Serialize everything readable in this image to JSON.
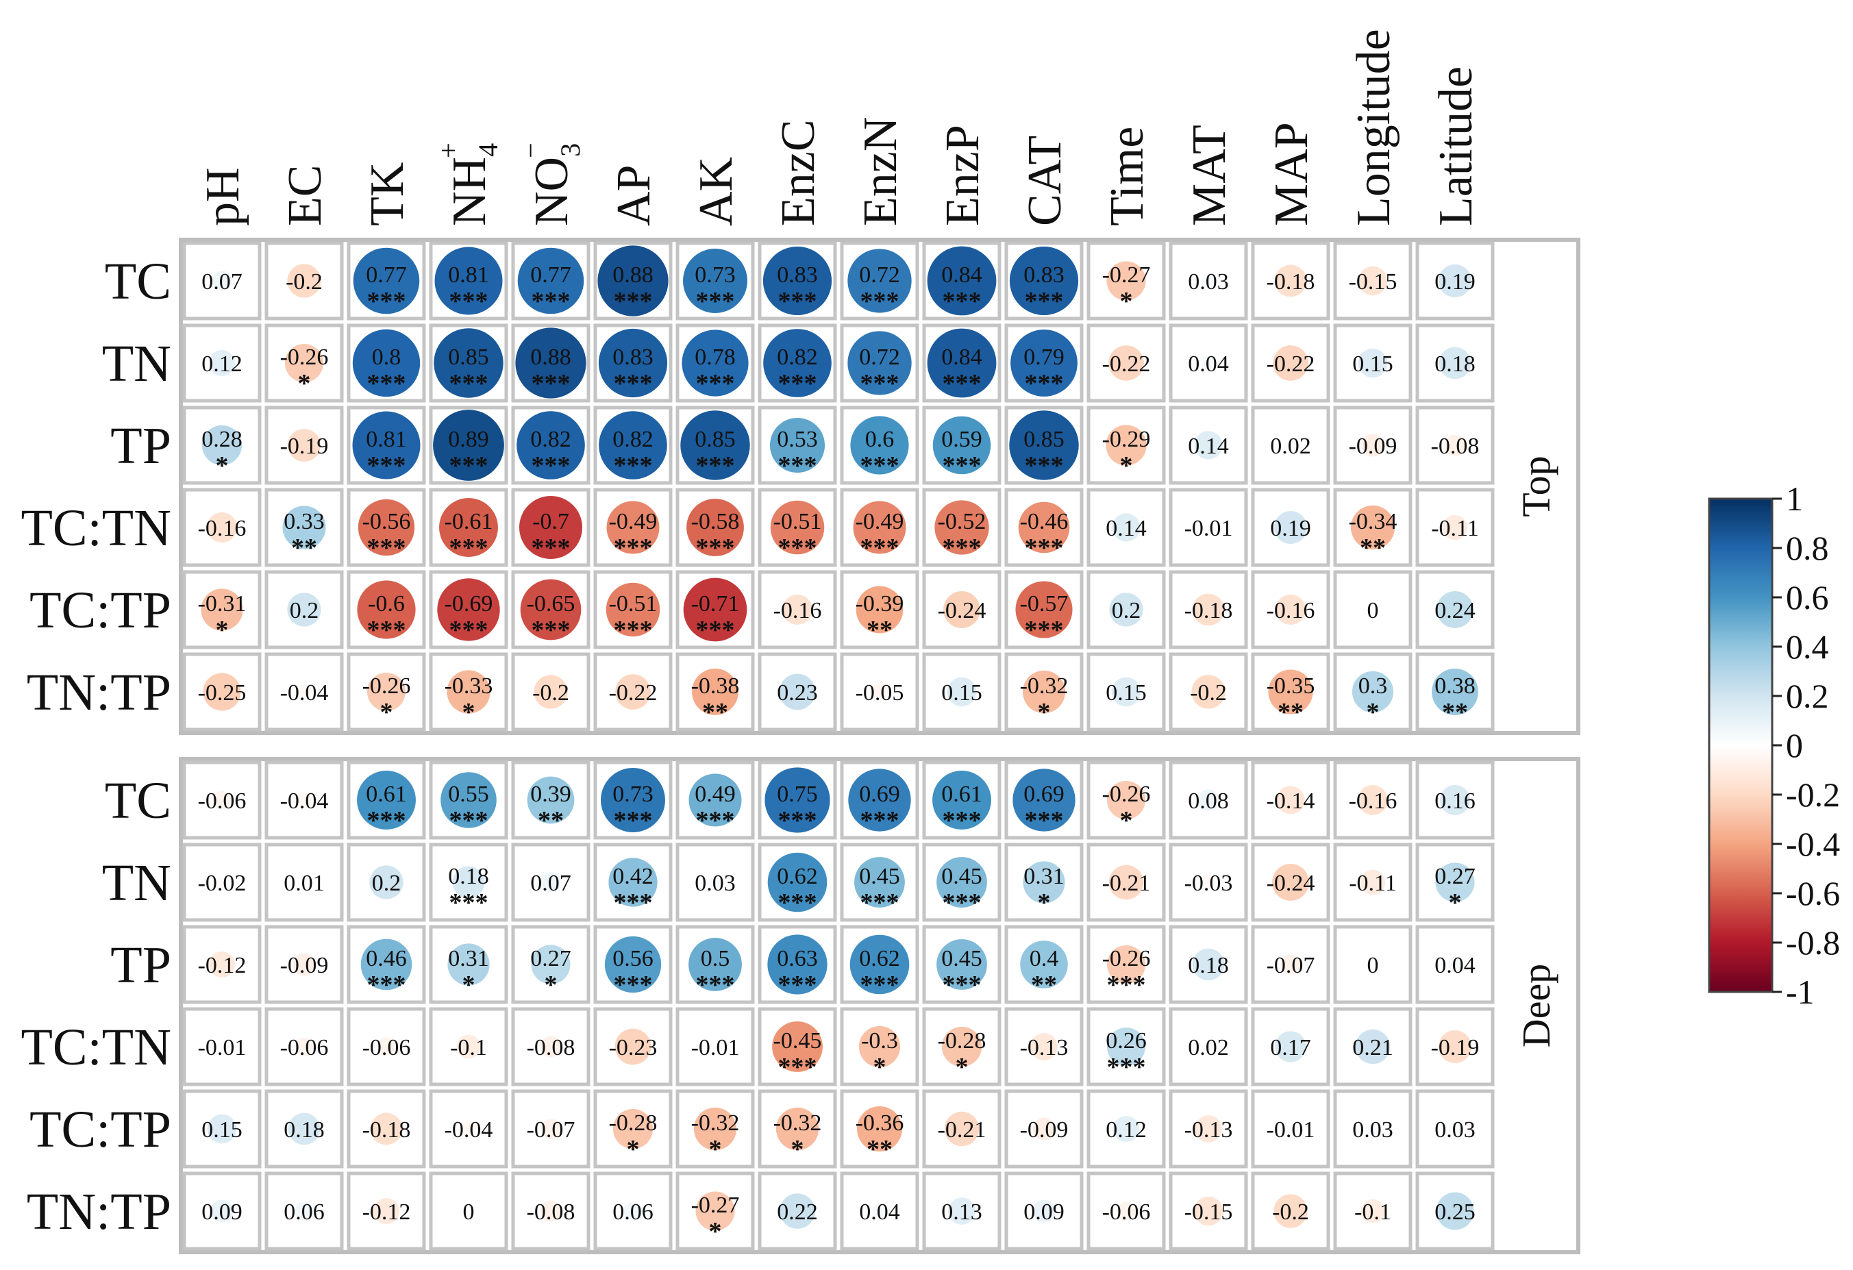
{
  "chart_data": {
    "type": "heatmap",
    "title": "",
    "columns": [
      "pH",
      "EC",
      "TK",
      "NH4+",
      "NO3-",
      "AP",
      "AK",
      "EnzC",
      "EnzN",
      "EnzP",
      "CAT",
      "Time",
      "MAT",
      "MAP",
      "Longitude",
      "Latitude"
    ],
    "rows": [
      "TC",
      "TN",
      "TP",
      "TC:TN",
      "TC:TP",
      "TN:TP"
    ],
    "panels": [
      {
        "name": "Top",
        "values": [
          [
            "0.07",
            "-0.2",
            "0.77",
            "0.81",
            "0.77",
            "0.88",
            "0.73",
            "0.83",
            "0.72",
            "0.84",
            "0.83",
            "-0.27",
            "0.03",
            "-0.18",
            "-0.15",
            "0.19"
          ],
          [
            "0.12",
            "-0.26",
            "0.8",
            "0.85",
            "0.88",
            "0.83",
            "0.78",
            "0.82",
            "0.72",
            "0.84",
            "0.79",
            "-0.22",
            "0.04",
            "-0.22",
            "0.15",
            "0.18"
          ],
          [
            "0.28",
            "-0.19",
            "0.81",
            "0.89",
            "0.82",
            "0.82",
            "0.85",
            "0.53",
            "0.6",
            "0.59",
            "0.85",
            "-0.29",
            "0.14",
            "0.02",
            "-0.09",
            "-0.08"
          ],
          [
            "-0.16",
            "0.33",
            "-0.56",
            "-0.61",
            "-0.7",
            "-0.49",
            "-0.58",
            "-0.51",
            "-0.49",
            "-0.52",
            "-0.46",
            "0.14",
            "-0.01",
            "0.19",
            "-0.34",
            "-0.11"
          ],
          [
            "-0.31",
            "0.2",
            "-0.6",
            "-0.69",
            "-0.65",
            "-0.51",
            "-0.71",
            "-0.16",
            "-0.39",
            "-0.24",
            "-0.57",
            "0.2",
            "-0.18",
            "-0.16",
            "0",
            "0.24"
          ],
          [
            "-0.25",
            "-0.04",
            "-0.26",
            "-0.33",
            "-0.2",
            "-0.22",
            "-0.38",
            "0.23",
            "-0.05",
            "0.15",
            "-0.32",
            "0.15",
            "-0.2",
            "-0.35",
            "0.3",
            "0.38"
          ]
        ],
        "significance": [
          [
            "",
            "",
            "***",
            "***",
            "***",
            "***",
            "***",
            "***",
            "***",
            "***",
            "***",
            "*",
            "",
            "",
            "",
            ""
          ],
          [
            "",
            "*",
            "***",
            "***",
            "***",
            "***",
            "***",
            "***",
            "***",
            "***",
            "***",
            "",
            "",
            "",
            "",
            ""
          ],
          [
            "*",
            "",
            "***",
            "***",
            "***",
            "***",
            "***",
            "***",
            "***",
            "***",
            "***",
            "*",
            "",
            "",
            "",
            ""
          ],
          [
            "",
            "**",
            "***",
            "***",
            "***",
            "***",
            "***",
            "***",
            "***",
            "***",
            "***",
            "",
            "",
            "",
            "**",
            ""
          ],
          [
            "*",
            "",
            "***",
            "***",
            "***",
            "***",
            "***",
            "",
            "**",
            "",
            "***",
            "",
            "",
            "",
            "",
            ""
          ],
          [
            "",
            "",
            "*",
            "*",
            "",
            "",
            "**",
            "",
            "",
            "",
            "*",
            "",
            "",
            "**",
            "*",
            "**"
          ]
        ]
      },
      {
        "name": "Deep",
        "values": [
          [
            "-0.06",
            "-0.04",
            "0.61",
            "0.55",
            "0.39",
            "0.73",
            "0.49",
            "0.75",
            "0.69",
            "0.61",
            "0.69",
            "-0.26",
            "0.08",
            "-0.14",
            "-0.16",
            "0.16"
          ],
          [
            "-0.02",
            "0.01",
            "0.2",
            "0.18",
            "0.07",
            "0.42",
            "0.03",
            "0.62",
            "0.45",
            "0.45",
            "0.31",
            "-0.21",
            "-0.03",
            "-0.24",
            "-0.11",
            "0.27"
          ],
          [
            "-0.12",
            "-0.09",
            "0.46",
            "0.31",
            "0.27",
            "0.56",
            "0.5",
            "0.63",
            "0.62",
            "0.45",
            "0.4",
            "-0.26",
            "0.18",
            "-0.07",
            "0",
            "0.04"
          ],
          [
            "-0.01",
            "-0.06",
            "-0.06",
            "-0.1",
            "-0.08",
            "-0.23",
            "-0.01",
            "-0.45",
            "-0.3",
            "-0.28",
            "-0.13",
            "0.26",
            "0.02",
            "0.17",
            "0.21",
            "-0.19"
          ],
          [
            "0.15",
            "0.18",
            "-0.18",
            "-0.04",
            "-0.07",
            "-0.28",
            "-0.32",
            "-0.32",
            "-0.36",
            "-0.21",
            "-0.09",
            "0.12",
            "-0.13",
            "-0.01",
            "0.03",
            "0.03"
          ],
          [
            "0.09",
            "0.06",
            "-0.12",
            "0",
            "-0.08",
            "0.06",
            "-0.27",
            "0.22",
            "0.04",
            "0.13",
            "0.09",
            "-0.06",
            "-0.15",
            "-0.2",
            "-0.1",
            "0.25"
          ]
        ],
        "significance": [
          [
            "",
            "",
            "***",
            "***",
            "**",
            "***",
            "***",
            "***",
            "***",
            "***",
            "***",
            "*",
            "",
            "",
            "",
            ""
          ],
          [
            "",
            "",
            "",
            "***",
            "",
            "***",
            "",
            "***",
            "***",
            "***",
            "*",
            "",
            "",
            "",
            "",
            "*"
          ],
          [
            "",
            "",
            "***",
            "*",
            "*",
            "***",
            "***",
            "***",
            "***",
            "***",
            "**",
            "***",
            "",
            "",
            "",
            ""
          ],
          [
            "",
            "",
            "",
            "",
            "",
            "",
            "",
            "***",
            "*",
            "*",
            "",
            "***",
            "",
            "",
            "",
            ""
          ],
          [
            "",
            "",
            "",
            "",
            "",
            "*",
            "*",
            "*",
            "**",
            "",
            "",
            "",
            "",
            "",
            "",
            ""
          ],
          [
            "",
            "",
            "",
            "",
            "",
            "",
            "*",
            "",
            "",
            "",
            "",
            "",
            "",
            "",
            "",
            ""
          ]
        ]
      }
    ],
    "legend": {
      "range": [
        -1,
        1
      ],
      "ticks": [
        "1",
        "0.8",
        "0.6",
        "0.4",
        "0.2",
        "0",
        "-0.2",
        "-0.4",
        "-0.6",
        "-0.8",
        "-1"
      ],
      "placement": "right",
      "colors": [
        "#67001f",
        "#b2182b",
        "#d6604d",
        "#f4a582",
        "#fddbc7",
        "#ffffff",
        "#d1e5f0",
        "#92c5de",
        "#4393c3",
        "#2166ac",
        "#053061"
      ]
    },
    "grid": true
  }
}
